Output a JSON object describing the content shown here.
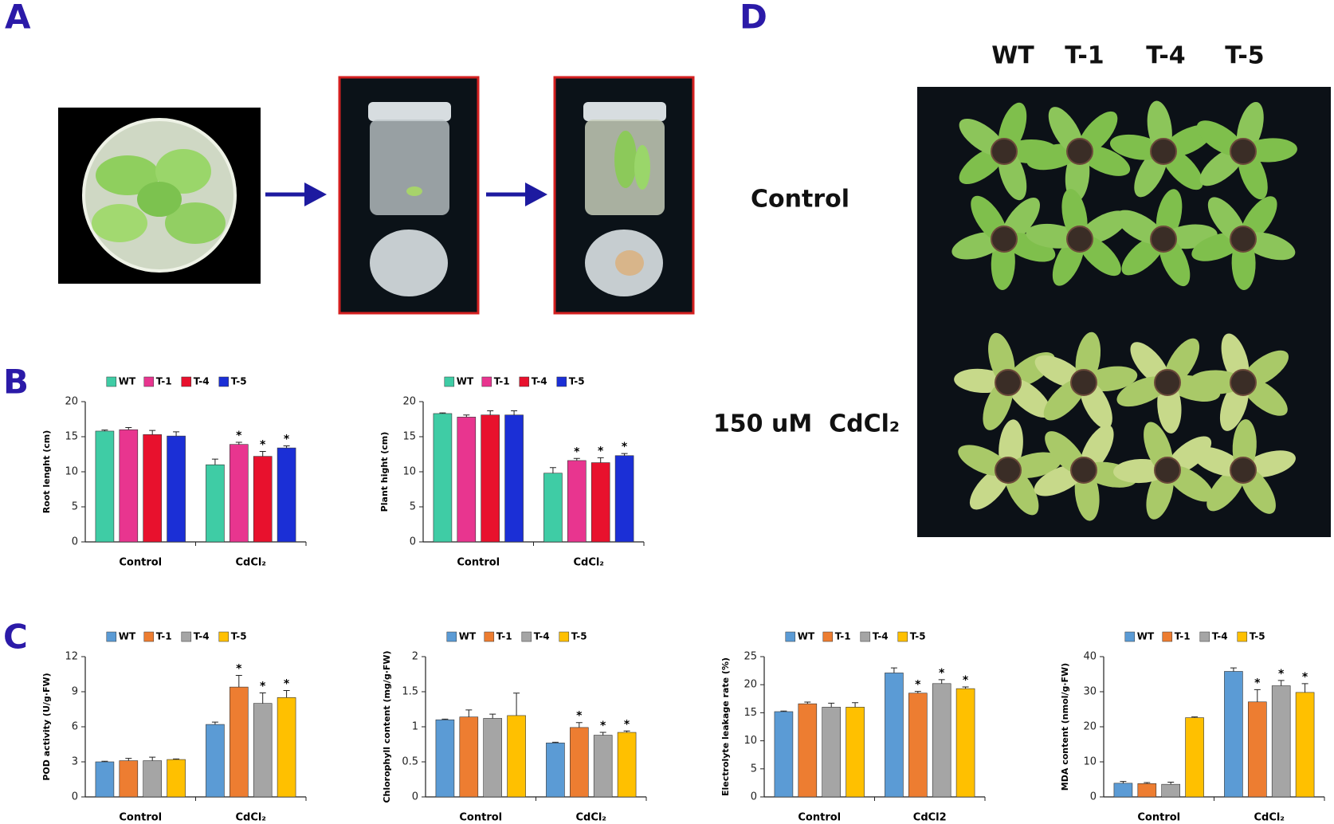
{
  "panels": {
    "a": "A",
    "b": "B",
    "c": "C",
    "d": "D"
  },
  "photo_d": {
    "columns": [
      "WT",
      "T-1",
      "T-4",
      "T-5"
    ],
    "rows": [
      "Control",
      "150 uM  CdCl₂"
    ]
  },
  "chart_data": [
    {
      "type": "bar",
      "ylabel": "Root lenght (cm)",
      "categories": [
        "Control",
        "CdCl₂"
      ],
      "ylim": [
        0,
        20
      ],
      "yticks": [
        0,
        5,
        10,
        15,
        20
      ],
      "legend": "top",
      "series": [
        {
          "name": "WT",
          "color": "#3fcca5",
          "values": [
            15.8,
            11.0
          ],
          "errors": [
            0.15,
            0.8
          ],
          "marks": [
            null,
            null
          ]
        },
        {
          "name": "T-1",
          "color": "#e8358f",
          "values": [
            16.0,
            13.9
          ],
          "errors": [
            0.3,
            0.3
          ],
          "marks": [
            null,
            "*"
          ]
        },
        {
          "name": "T-4",
          "color": "#e8112d",
          "values": [
            15.3,
            12.2
          ],
          "errors": [
            0.6,
            0.7
          ],
          "marks": [
            null,
            "*"
          ]
        },
        {
          "name": "T-5",
          "color": "#1b2fd6",
          "values": [
            15.1,
            13.4
          ],
          "errors": [
            0.6,
            0.3
          ],
          "marks": [
            null,
            "*"
          ]
        }
      ]
    },
    {
      "type": "bar",
      "ylabel": "Plant hight (cm)",
      "categories": [
        "Control",
        "CdCl₂"
      ],
      "ylim": [
        0,
        20
      ],
      "yticks": [
        0,
        5,
        10,
        15,
        20
      ],
      "legend": "top",
      "series": [
        {
          "name": "WT",
          "color": "#3fcca5",
          "values": [
            18.3,
            9.8
          ],
          "errors": [
            0.1,
            0.8
          ],
          "marks": [
            null,
            null
          ]
        },
        {
          "name": "T-1",
          "color": "#e8358f",
          "values": [
            17.8,
            11.6
          ],
          "errors": [
            0.3,
            0.3
          ],
          "marks": [
            null,
            "*"
          ]
        },
        {
          "name": "T-4",
          "color": "#e8112d",
          "values": [
            18.1,
            11.3
          ],
          "errors": [
            0.6,
            0.7
          ],
          "marks": [
            null,
            "*"
          ]
        },
        {
          "name": "T-5",
          "color": "#1b2fd6",
          "values": [
            18.1,
            12.3
          ],
          "errors": [
            0.6,
            0.3
          ],
          "marks": [
            null,
            "*"
          ]
        }
      ]
    },
    {
      "type": "bar",
      "ylabel": "POD activity (U/g·FW)",
      "categories": [
        "Control",
        "CdCl₂"
      ],
      "ylim": [
        0,
        12
      ],
      "yticks": [
        0,
        3,
        6,
        9,
        12
      ],
      "legend": "top",
      "series": [
        {
          "name": "WT",
          "color": "#5b9bd5",
          "values": [
            3.0,
            6.2
          ],
          "errors": [
            0.05,
            0.2
          ],
          "marks": [
            null,
            null
          ]
        },
        {
          "name": "T-1",
          "color": "#ed7d31",
          "values": [
            3.1,
            9.4
          ],
          "errors": [
            0.2,
            1.0
          ],
          "marks": [
            null,
            "*"
          ]
        },
        {
          "name": "T-4",
          "color": "#a5a5a5",
          "values": [
            3.1,
            8.0
          ],
          "errors": [
            0.3,
            0.9
          ],
          "marks": [
            null,
            "*"
          ]
        },
        {
          "name": "T-5",
          "color": "#ffc000",
          "values": [
            3.2,
            8.5
          ],
          "errors": [
            0.05,
            0.6
          ],
          "marks": [
            null,
            "*"
          ]
        }
      ]
    },
    {
      "type": "bar",
      "ylabel": "Chlorophyll content (mg/g·FW)",
      "categories": [
        "Control",
        "CdCl₂"
      ],
      "ylim": [
        0,
        2
      ],
      "yticks": [
        0,
        0.5,
        1,
        1.5,
        2
      ],
      "legend": "top",
      "series": [
        {
          "name": "WT",
          "color": "#5b9bd5",
          "values": [
            1.1,
            0.77
          ],
          "errors": [
            0.01,
            0.01
          ],
          "marks": [
            null,
            null
          ]
        },
        {
          "name": "T-1",
          "color": "#ed7d31",
          "values": [
            1.14,
            0.99
          ],
          "errors": [
            0.1,
            0.07
          ],
          "marks": [
            null,
            "*"
          ]
        },
        {
          "name": "T-4",
          "color": "#a5a5a5",
          "values": [
            1.12,
            0.88
          ],
          "errors": [
            0.06,
            0.04
          ],
          "marks": [
            null,
            "*"
          ]
        },
        {
          "name": "T-5",
          "color": "#ffc000",
          "values": [
            1.16,
            0.92
          ],
          "errors": [
            0.32,
            0.02
          ],
          "marks": [
            null,
            "*"
          ]
        }
      ]
    },
    {
      "type": "bar",
      "ylabel": "Electrolyte leakage rate (%)",
      "categories": [
        "Control",
        "CdCl2"
      ],
      "ylim": [
        0,
        25
      ],
      "yticks": [
        0,
        5,
        10,
        15,
        20,
        25
      ],
      "legend": "top",
      "series": [
        {
          "name": "WT",
          "color": "#5b9bd5",
          "values": [
            15.2,
            22.1
          ],
          "errors": [
            0.1,
            0.9
          ],
          "marks": [
            null,
            null
          ]
        },
        {
          "name": "T-1",
          "color": "#ed7d31",
          "values": [
            16.6,
            18.5
          ],
          "errors": [
            0.3,
            0.3
          ],
          "marks": [
            null,
            "*"
          ]
        },
        {
          "name": "T-4",
          "color": "#a5a5a5",
          "values": [
            16.0,
            20.2
          ],
          "errors": [
            0.7,
            0.7
          ],
          "marks": [
            null,
            "*"
          ]
        },
        {
          "name": "T-5",
          "color": "#ffc000",
          "values": [
            16.0,
            19.3
          ],
          "errors": [
            0.8,
            0.3
          ],
          "marks": [
            null,
            "*"
          ]
        }
      ]
    },
    {
      "type": "bar",
      "ylabel": "MDA content (nmol/g·FW)",
      "categories": [
        "Control",
        "CdCl₂"
      ],
      "ylim": [
        0,
        40
      ],
      "yticks": [
        0,
        10,
        20,
        30,
        40
      ],
      "legend": "top",
      "series": [
        {
          "name": "WT",
          "color": "#5b9bd5",
          "values": [
            3.9,
            35.8
          ],
          "errors": [
            0.5,
            1.0
          ],
          "marks": [
            null,
            null
          ]
        },
        {
          "name": "T-1",
          "color": "#ed7d31",
          "values": [
            3.8,
            27.1
          ],
          "errors": [
            0.3,
            3.5
          ],
          "marks": [
            null,
            "*"
          ]
        },
        {
          "name": "T-4",
          "color": "#a5a5a5",
          "values": [
            3.6,
            31.7
          ],
          "errors": [
            0.6,
            1.5
          ],
          "marks": [
            null,
            "*"
          ]
        },
        {
          "name": "T-5",
          "color": "#ffc000",
          "values": [
            22.6,
            29.8
          ],
          "errors": [
            0.2,
            2.5
          ],
          "marks": [
            null,
            "*"
          ]
        }
      ]
    }
  ]
}
